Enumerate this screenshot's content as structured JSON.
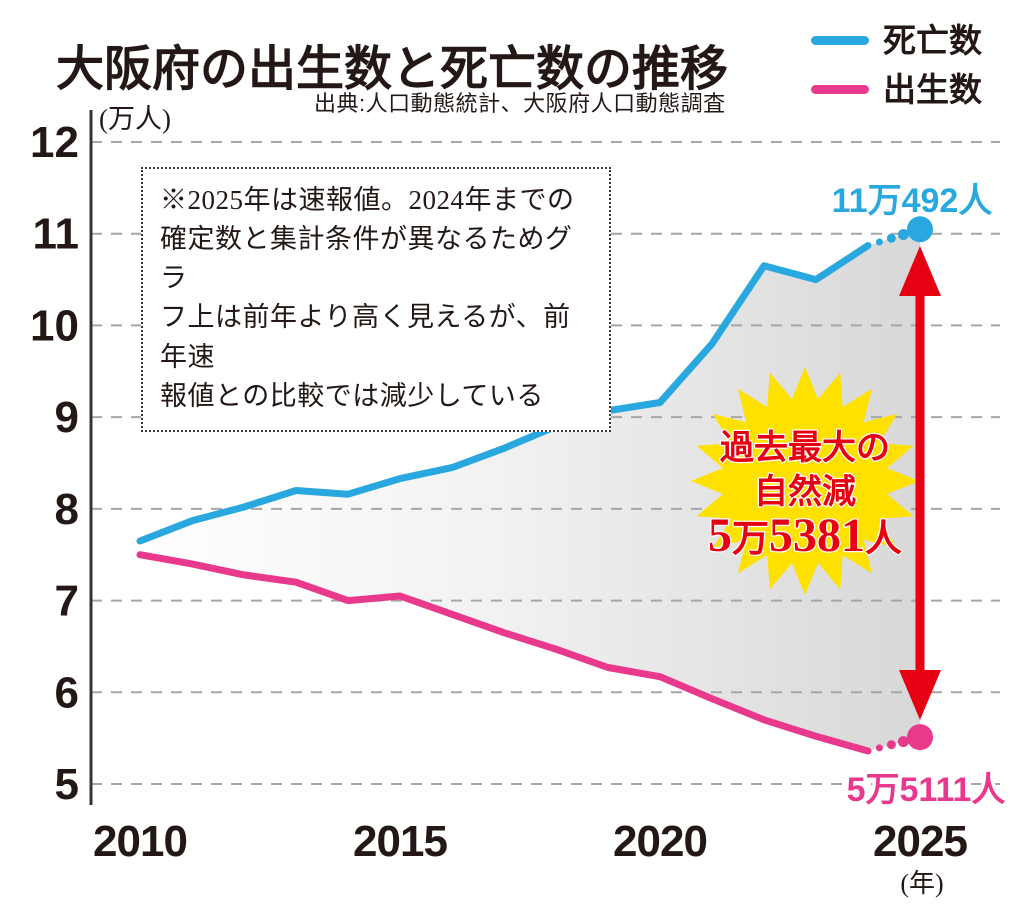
{
  "title": "大阪府の出生数と死亡数の推移",
  "source": "出典:人口動態統計、大阪府人口動態調査",
  "legend": [
    {
      "label": "死亡数",
      "color": "#29a8e0"
    },
    {
      "label": "出生数",
      "color": "#e8398c"
    }
  ],
  "note": {
    "lines": [
      "※2025年は速報値。2024年までの",
      "確定数と集計条件が異なるためグラ",
      "フ上は前年より高く見えるが、前年速",
      "報値との比較では減少している"
    ]
  },
  "callout": {
    "lines": [
      "過去最大の",
      "自然減",
      "5万5381人"
    ],
    "fill_color": "#ffe100",
    "text_color": "#e60012"
  },
  "endpoint_labels": {
    "deaths": "11万492人",
    "births": "5万5111人"
  },
  "colors": {
    "deaths_line": "#29a8e0",
    "births_line": "#e8398c",
    "arrow_red": "#e60012",
    "starburst_yellow": "#ffe100",
    "grid": "#a6a6a6",
    "axis": "#3a342f",
    "ink": "#231815",
    "area_left": "#ffffff",
    "area_right": "#d8d8d8"
  },
  "y_axis": {
    "unit": "(万人)",
    "ticks": [
      12,
      11,
      10,
      9,
      8,
      7,
      6,
      5
    ]
  },
  "x_axis": {
    "tick_years": [
      2010,
      2015,
      2020,
      2025
    ],
    "unit": "(年)"
  },
  "chart_data": {
    "type": "line",
    "title": "大阪府の出生数と死亡数の推移",
    "xlabel": "(年)",
    "ylabel": "(万人)",
    "ylim": [
      5,
      12
    ],
    "xlim": [
      2010,
      2025
    ],
    "grid": "horizontal dashed",
    "legend_position": "top-right",
    "x": [
      2010,
      2011,
      2012,
      2013,
      2014,
      2015,
      2016,
      2017,
      2018,
      2019,
      2020,
      2021,
      2022,
      2023,
      2024,
      2025
    ],
    "series": [
      {
        "name": "死亡数",
        "color": "#29a8e0",
        "values": [
          7.65,
          7.87,
          8.02,
          8.2,
          8.16,
          8.33,
          8.45,
          8.66,
          8.9,
          9.07,
          9.16,
          9.8,
          10.65,
          10.5,
          10.87,
          11.0492
        ],
        "endpoint_label": "11万492人",
        "last_segment": "dotted"
      },
      {
        "name": "出生数",
        "color": "#e8398c",
        "values": [
          7.5,
          7.4,
          7.28,
          7.2,
          7.0,
          7.05,
          6.85,
          6.65,
          6.47,
          6.27,
          6.17,
          5.93,
          5.7,
          5.52,
          5.36,
          5.5111
        ],
        "endpoint_label": "5万5111人",
        "last_segment": "dotted"
      }
    ],
    "annotations": {
      "note": "※2025年は速報値。2024年までの確定数と集計条件が異なるためグラフ上は前年より高く見えるが、前年速報値との比較では減少している",
      "callout": "過去最大の自然減 5万5381人",
      "gap_arrow_year": 2025
    }
  }
}
